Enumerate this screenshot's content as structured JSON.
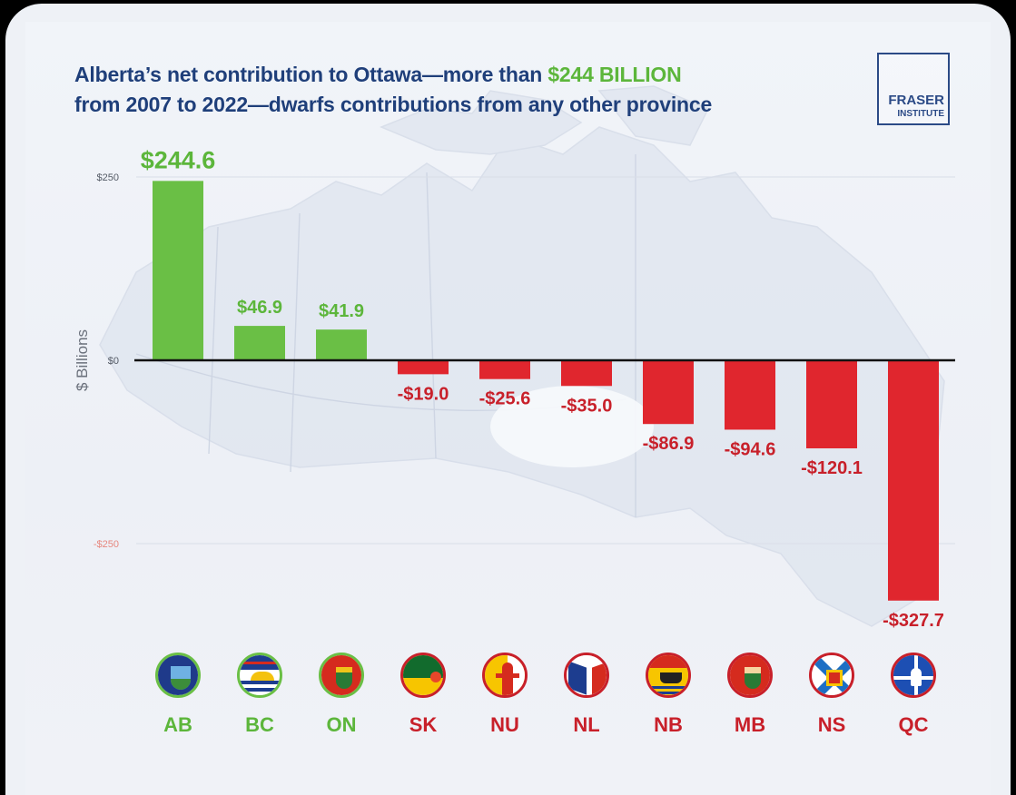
{
  "title": {
    "line1_pre": "Alberta’s net contribution to Ottawa—more than ",
    "line1_highlight": "$244 BILLION",
    "line2": "from 2007 to 2022—dwarfs contributions from any other province"
  },
  "logo": {
    "line1": "FRASER",
    "line2": "INSTITUTE"
  },
  "colors": {
    "positive": "#6abf45",
    "negative": "#e0262e",
    "title": "#1f3f7a",
    "positive_text": "#5cb63b",
    "negative_text": "#c8202a"
  },
  "chart_data": {
    "type": "bar",
    "title": "Alberta’s net contribution to Ottawa—more than $244 BILLION from 2007 to 2022—dwarfs contributions from any other province",
    "ylabel": "$ Billions",
    "ylim": [
      -327.7,
      250
    ],
    "yticks": [
      {
        "value": 250,
        "label": "$250"
      },
      {
        "value": 0,
        "label": "$0"
      },
      {
        "value": -250,
        "label": "-$250"
      }
    ],
    "categories": [
      "AB",
      "BC",
      "ON",
      "SK",
      "NU",
      "NL",
      "NB",
      "MB",
      "NS",
      "QC"
    ],
    "values": [
      244.6,
      46.9,
      41.9,
      -19.0,
      -25.6,
      -35.0,
      -86.9,
      -94.6,
      -120.1,
      -327.7
    ],
    "value_labels": [
      "$244.6",
      "$46.9",
      "$41.9",
      "-$19.0",
      "-$25.6",
      "-$35.0",
      "-$86.9",
      "-$94.6",
      "-$120.1",
      "-$327.7"
    ],
    "flag_icons": [
      "alberta-flag-icon",
      "british-columbia-flag-icon",
      "ontario-flag-icon",
      "saskatchewan-flag-icon",
      "nunavut-flag-icon",
      "newfoundland-flag-icon",
      "new-brunswick-flag-icon",
      "manitoba-flag-icon",
      "nova-scotia-flag-icon",
      "quebec-flag-icon"
    ],
    "grid": true
  }
}
